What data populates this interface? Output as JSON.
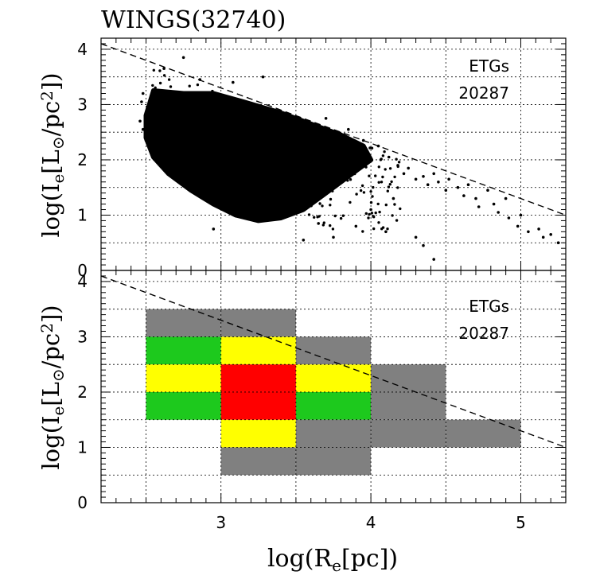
{
  "chart_data": [
    {
      "type": "scatter",
      "title": "WINGS(32740)",
      "xlabel": "log(R_e[pc])",
      "ylabel": "log(I_e[L_⊙/pc²])",
      "xlim": [
        2.2,
        5.3
      ],
      "ylim": [
        0,
        4.2
      ],
      "xticks": [
        "3",
        "4",
        "5"
      ],
      "yticks": [
        "0",
        "1",
        "2",
        "3",
        "4"
      ],
      "grid": true,
      "annotations": [
        "ETGs",
        "20287"
      ],
      "dense_core": {
        "x_center": 3.25,
        "y_center": 2.1
      },
      "outlier_points": [
        [
          2.48,
          3.2
        ],
        [
          2.47,
          3.05
        ],
        [
          2.46,
          2.7
        ],
        [
          2.48,
          2.55
        ],
        [
          2.5,
          2.35
        ],
        [
          2.62,
          3.65
        ],
        [
          2.75,
          3.85
        ],
        [
          2.86,
          3.45
        ],
        [
          3.08,
          3.4
        ],
        [
          3.28,
          3.5
        ],
        [
          3.7,
          2.75
        ],
        [
          3.85,
          2.55
        ],
        [
          3.95,
          2.35
        ],
        [
          4.05,
          2.25
        ],
        [
          4.12,
          2.05
        ],
        [
          4.18,
          1.9
        ],
        [
          4.22,
          1.75
        ],
        [
          4.25,
          1.85
        ],
        [
          4.3,
          1.65
        ],
        [
          4.35,
          1.7
        ],
        [
          4.38,
          1.55
        ],
        [
          4.42,
          1.75
        ],
        [
          4.45,
          1.6
        ],
        [
          4.5,
          1.45
        ],
        [
          4.52,
          1.65
        ],
        [
          4.58,
          1.5
        ],
        [
          4.62,
          1.35
        ],
        [
          4.65,
          1.55
        ],
        [
          4.7,
          1.3
        ],
        [
          4.72,
          1.15
        ],
        [
          4.78,
          1.45
        ],
        [
          4.82,
          1.2
        ],
        [
          4.85,
          1.05
        ],
        [
          4.9,
          1.3
        ],
        [
          4.92,
          0.95
        ],
        [
          4.98,
          0.8
        ],
        [
          5.0,
          1.0
        ],
        [
          5.05,
          0.7
        ],
        [
          5.12,
          0.75
        ],
        [
          5.15,
          0.6
        ],
        [
          5.2,
          0.65
        ],
        [
          5.25,
          0.5
        ],
        [
          4.1,
          0.7
        ],
        [
          4.3,
          0.6
        ],
        [
          4.35,
          0.45
        ],
        [
          4.42,
          0.2
        ],
        [
          3.65,
          0.85
        ],
        [
          3.75,
          0.6
        ],
        [
          3.9,
          0.8
        ],
        [
          2.95,
          0.75
        ],
        [
          3.55,
          0.55
        ],
        [
          4.0,
          1.1
        ],
        [
          4.15,
          1.3
        ],
        [
          2.55,
          2.25
        ],
        [
          2.6,
          2.05
        ],
        [
          2.7,
          1.9
        ],
        [
          2.8,
          1.75
        ],
        [
          2.9,
          1.6
        ],
        [
          3.0,
          1.2
        ],
        [
          3.1,
          1.0
        ]
      ],
      "boundary_line": {
        "x": [
          2.2,
          5.3
        ],
        "y": [
          4.1,
          1.0
        ],
        "style": "dashed"
      }
    },
    {
      "type": "heatmap",
      "xlabel": "log(R_e[pc])",
      "ylabel": "log(I_e[L_⊙/pc²])",
      "xlim": [
        2.2,
        5.3
      ],
      "ylim": [
        0,
        4.2
      ],
      "xticks": [
        "3",
        "4",
        "5"
      ],
      "yticks": [
        "0",
        "1",
        "2",
        "3",
        "4"
      ],
      "grid": true,
      "annotations": [
        "ETGs",
        "20287"
      ],
      "cells": [
        {
          "x0": 2.5,
          "x1": 3.0,
          "y0": 3.0,
          "y1": 3.5,
          "color": "#808080"
        },
        {
          "x0": 3.0,
          "x1": 3.5,
          "y0": 3.0,
          "y1": 3.5,
          "color": "#808080"
        },
        {
          "x0": 2.5,
          "x1": 3.0,
          "y0": 2.5,
          "y1": 3.0,
          "color": "#1dc91d"
        },
        {
          "x0": 3.0,
          "x1": 3.5,
          "y0": 2.5,
          "y1": 3.0,
          "color": "#ffff00"
        },
        {
          "x0": 3.5,
          "x1": 4.0,
          "y0": 2.5,
          "y1": 3.0,
          "color": "#808080"
        },
        {
          "x0": 2.5,
          "x1": 3.0,
          "y0": 2.0,
          "y1": 2.5,
          "color": "#ffff00"
        },
        {
          "x0": 3.0,
          "x1": 3.5,
          "y0": 2.0,
          "y1": 2.5,
          "color": "#ff0000"
        },
        {
          "x0": 3.5,
          "x1": 4.0,
          "y0": 2.0,
          "y1": 2.5,
          "color": "#ffff00"
        },
        {
          "x0": 4.0,
          "x1": 4.5,
          "y0": 2.0,
          "y1": 2.5,
          "color": "#808080"
        },
        {
          "x0": 2.5,
          "x1": 3.0,
          "y0": 1.5,
          "y1": 2.0,
          "color": "#1dc91d"
        },
        {
          "x0": 3.0,
          "x1": 3.5,
          "y0": 1.5,
          "y1": 2.0,
          "color": "#ff0000"
        },
        {
          "x0": 3.5,
          "x1": 4.0,
          "y0": 1.5,
          "y1": 2.0,
          "color": "#1dc91d"
        },
        {
          "x0": 4.0,
          "x1": 4.5,
          "y0": 1.5,
          "y1": 2.0,
          "color": "#808080"
        },
        {
          "x0": 3.0,
          "x1": 3.5,
          "y0": 1.0,
          "y1": 1.5,
          "color": "#ffff00"
        },
        {
          "x0": 3.5,
          "x1": 4.0,
          "y0": 1.0,
          "y1": 1.5,
          "color": "#808080"
        },
        {
          "x0": 4.0,
          "x1": 4.5,
          "y0": 1.0,
          "y1": 1.5,
          "color": "#808080"
        },
        {
          "x0": 4.5,
          "x1": 5.0,
          "y0": 1.0,
          "y1": 1.5,
          "color": "#808080"
        },
        {
          "x0": 3.0,
          "x1": 3.5,
          "y0": 0.5,
          "y1": 1.0,
          "color": "#808080"
        },
        {
          "x0": 3.5,
          "x1": 4.0,
          "y0": 0.5,
          "y1": 1.0,
          "color": "#808080"
        }
      ],
      "boundary_line": {
        "x": [
          2.2,
          5.3
        ],
        "y": [
          4.1,
          1.0
        ],
        "style": "dashed"
      }
    }
  ]
}
